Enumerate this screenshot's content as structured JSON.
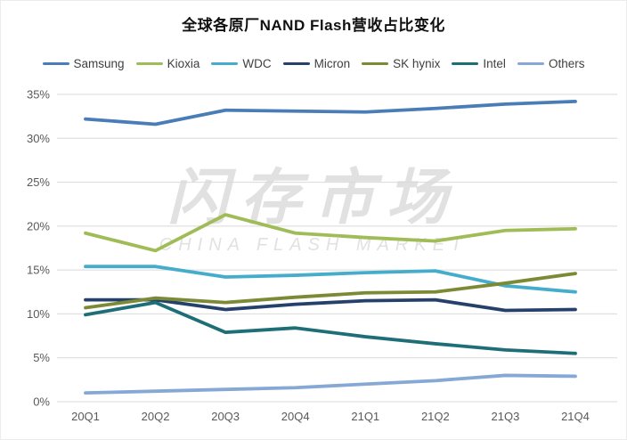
{
  "title": "全球各原厂NAND Flash营收占比变化",
  "watermark": {
    "line1": "闪存市场",
    "line2": "CHINA FLASH MARKET"
  },
  "chart_data": {
    "type": "line",
    "categories": [
      "20Q1",
      "20Q2",
      "20Q3",
      "20Q4",
      "21Q1",
      "21Q2",
      "21Q3",
      "21Q4"
    ],
    "series": [
      {
        "name": "Samsung",
        "color": "#4a7db8",
        "values": [
          32.2,
          31.6,
          33.2,
          33.1,
          33.0,
          33.4,
          33.9,
          34.2
        ]
      },
      {
        "name": "Kioxia",
        "color": "#a0bc56",
        "values": [
          19.2,
          17.2,
          21.3,
          19.2,
          18.7,
          18.3,
          19.5,
          19.7
        ]
      },
      {
        "name": "WDC",
        "color": "#45adcb",
        "values": [
          15.4,
          15.4,
          14.2,
          14.4,
          14.7,
          14.9,
          13.2,
          12.5
        ]
      },
      {
        "name": "Micron",
        "color": "#25416b",
        "values": [
          11.6,
          11.6,
          10.5,
          11.1,
          11.5,
          11.6,
          10.4,
          10.5
        ]
      },
      {
        "name": "SK hynix",
        "color": "#7b8a35",
        "values": [
          10.7,
          11.8,
          11.3,
          11.9,
          12.4,
          12.5,
          13.5,
          14.6
        ]
      },
      {
        "name": "Intel",
        "color": "#1e6e77",
        "values": [
          9.9,
          11.3,
          7.9,
          8.4,
          7.4,
          6.6,
          5.9,
          5.5
        ]
      },
      {
        "name": "Others",
        "color": "#86a8d4",
        "values": [
          1.0,
          1.2,
          1.4,
          1.6,
          2.0,
          2.4,
          3.0,
          2.9
        ]
      }
    ],
    "title": "全球各原厂NAND Flash营收占比变化",
    "xlabel": "",
    "ylabel": "",
    "ylim": [
      0,
      35
    ],
    "y_ticks": [
      "0%",
      "5%",
      "10%",
      "15%",
      "20%",
      "25%",
      "30%",
      "35%"
    ],
    "grid": true,
    "grid_color": "#d9d9d9",
    "tick_label_color": "#595959",
    "legend_position": "top"
  }
}
